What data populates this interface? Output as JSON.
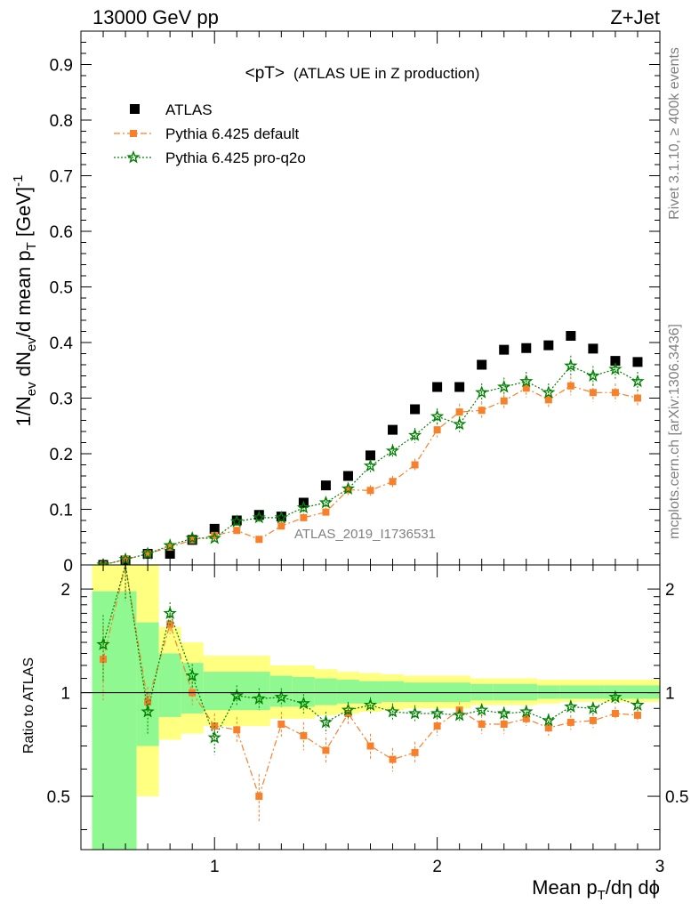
{
  "header": {
    "left": "13000 GeV pp",
    "right": "Z+Jet"
  },
  "side": {
    "rivet": "Rivet 3.1.10, ≥ 400k events",
    "mcplots": "mcplots.cern.ch [arXiv:1306.3436]"
  },
  "chart_data": [
    {
      "type": "scatter",
      "title": "<pT>",
      "subtitle": "(ATLAS UE in Z production)",
      "watermark": "ATLAS_2019_I1736531",
      "ylabel_parts": {
        "a": "1/N",
        "a_sub": "ev",
        "b": " dN",
        "b_sub": "ev",
        "c": "/d mean p",
        "c_sub": "T",
        "d": " [GeV]",
        "d_sup": "-1"
      },
      "xlim": [
        0.4,
        3.0
      ],
      "ylim": [
        0,
        0.96
      ],
      "yticks": [
        "0",
        "0.1",
        "0.2",
        "0.3",
        "0.4",
        "0.5",
        "0.6",
        "0.7",
        "0.8",
        "0.9"
      ],
      "legend_position": "top-left",
      "x": [
        0.5,
        0.6,
        0.7,
        0.8,
        0.9,
        1.0,
        1.1,
        1.2,
        1.3,
        1.4,
        1.5,
        1.6,
        1.7,
        1.8,
        1.9,
        2.0,
        2.1,
        2.2,
        2.3,
        2.4,
        2.5,
        2.6,
        2.7,
        2.8,
        2.9
      ],
      "series": [
        {
          "name": "ATLAS",
          "color": "#000000",
          "marker": "square",
          "values": [
            0.0,
            0.008,
            0.02,
            0.02,
            0.045,
            0.065,
            0.08,
            0.09,
            0.087,
            0.112,
            0.143,
            0.16,
            0.197,
            0.243,
            0.28,
            0.32,
            0.32,
            0.36,
            0.387,
            0.39,
            0.395,
            0.412,
            0.389,
            0.367,
            0.365
          ]
        },
        {
          "name": "Pythia 6.425 default",
          "color": "#f7812b",
          "marker": "square",
          "dash": "dash-dot",
          "values": [
            0.0,
            0.01,
            0.02,
            0.032,
            0.045,
            0.053,
            0.062,
            0.046,
            0.07,
            0.085,
            0.095,
            0.135,
            0.134,
            0.15,
            0.18,
            0.243,
            0.275,
            0.278,
            0.295,
            0.318,
            0.297,
            0.322,
            0.31,
            0.31,
            0.3
          ]
        },
        {
          "name": "Pythia 6.425 pro-q2o",
          "color": "#008000",
          "marker": "star",
          "dash": "dotted",
          "values": [
            0.0,
            0.01,
            0.02,
            0.035,
            0.048,
            0.048,
            0.078,
            0.085,
            0.085,
            0.103,
            0.112,
            0.137,
            0.178,
            0.205,
            0.233,
            0.267,
            0.253,
            0.31,
            0.32,
            0.33,
            0.31,
            0.358,
            0.34,
            0.352,
            0.33
          ]
        }
      ]
    },
    {
      "type": "scatter",
      "title": "",
      "ylabel": "Ratio to ATLAS",
      "xlabel_parts": {
        "a": "Mean p",
        "a_sub": "T",
        "b": "/dη dϕ"
      },
      "xlim": [
        0.4,
        3.0
      ],
      "ylim": [
        0.35,
        2.35
      ],
      "yscale": "log",
      "xticks": [
        "1",
        "2",
        "3"
      ],
      "yticks": [
        "0.5",
        "1",
        "2"
      ],
      "reference_line": 1,
      "x": [
        0.5,
        0.6,
        0.7,
        0.8,
        0.9,
        1.0,
        1.1,
        1.2,
        1.3,
        1.4,
        1.5,
        1.6,
        1.7,
        1.8,
        1.9,
        2.0,
        2.1,
        2.2,
        2.3,
        2.4,
        2.5,
        2.6,
        2.7,
        2.8,
        2.9
      ],
      "bands": {
        "bin_edges": [
          0.45,
          0.65,
          0.75,
          0.85,
          0.95,
          1.25,
          1.35,
          1.45,
          1.55,
          1.65,
          1.75,
          1.85,
          2.15,
          2.25,
          2.45,
          2.55,
          2.75,
          3.0
        ],
        "outer": {
          "color": "#ffff80",
          "low": [
            0.33,
            0.5,
            0.73,
            0.76,
            0.8,
            0.84,
            0.84,
            0.86,
            0.87,
            0.88,
            0.89,
            0.9,
            0.92,
            0.92,
            0.93,
            0.94,
            0.94
          ],
          "high": [
            2.35,
            2.35,
            1.55,
            1.4,
            1.28,
            1.2,
            1.2,
            1.17,
            1.15,
            1.14,
            1.13,
            1.12,
            1.1,
            1.1,
            1.09,
            1.09,
            1.09
          ]
        },
        "inner": {
          "color": "#90f890",
          "low": [
            0.33,
            0.7,
            0.85,
            0.87,
            0.89,
            0.91,
            0.91,
            0.92,
            0.93,
            0.93,
            0.94,
            0.94,
            0.95,
            0.95,
            0.96,
            0.96,
            0.96
          ],
          "high": [
            1.97,
            1.6,
            1.3,
            1.22,
            1.15,
            1.12,
            1.11,
            1.1,
            1.09,
            1.08,
            1.08,
            1.07,
            1.06,
            1.06,
            1.05,
            1.05,
            1.05
          ]
        }
      },
      "series": [
        {
          "name": "Pythia 6.425 default",
          "color": "#f7812b",
          "values": [
            1.25,
            2.35,
            0.94,
            1.58,
            1.0,
            0.8,
            0.78,
            0.5,
            0.81,
            0.75,
            0.68,
            0.87,
            0.7,
            0.64,
            0.67,
            0.8,
            0.89,
            0.81,
            0.81,
            0.84,
            0.79,
            0.82,
            0.83,
            0.87,
            0.86
          ],
          "errors": [
            0.3,
            0.5,
            0.1,
            0.1,
            0.08,
            0.07,
            0.07,
            0.08,
            0.07,
            0.07,
            0.06,
            0.06,
            0.06,
            0.05,
            0.05,
            0.05,
            0.05,
            0.05,
            0.05,
            0.04,
            0.04,
            0.04,
            0.04,
            0.04,
            0.04
          ]
        },
        {
          "name": "Pythia 6.425 pro-q2o",
          "color": "#008000",
          "values": [
            1.38,
            2.35,
            0.88,
            1.7,
            1.12,
            0.74,
            0.98,
            0.96,
            0.97,
            0.93,
            0.82,
            0.89,
            0.92,
            0.88,
            0.87,
            0.87,
            0.86,
            0.89,
            0.87,
            0.88,
            0.83,
            0.91,
            0.9,
            0.97,
            0.92
          ],
          "errors": [
            0.3,
            0.5,
            0.12,
            0.13,
            0.09,
            0.08,
            0.07,
            0.07,
            0.06,
            0.06,
            0.06,
            0.05,
            0.05,
            0.05,
            0.05,
            0.04,
            0.04,
            0.04,
            0.04,
            0.04,
            0.04,
            0.04,
            0.04,
            0.04,
            0.04
          ]
        }
      ]
    }
  ]
}
